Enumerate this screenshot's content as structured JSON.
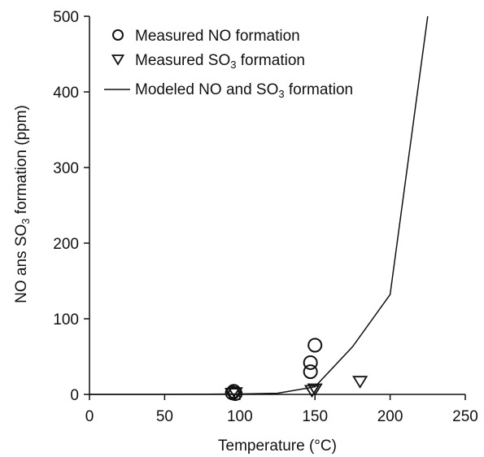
{
  "chart_data": {
    "type": "scatter",
    "xlabel": "Temperature (°C)",
    "ylabel": {
      "pre": "NO ans SO",
      "sub": "3",
      "post": " formation (ppm)"
    },
    "xlim": [
      0,
      250
    ],
    "ylim": [
      0,
      500
    ],
    "xticks": [
      0,
      50,
      100,
      150,
      200,
      250
    ],
    "yticks": [
      0,
      100,
      200,
      300,
      400,
      500
    ],
    "grid": false,
    "legend_position": "top-left",
    "series": [
      {
        "name": "Measured NO formation",
        "marker": "circle",
        "x": [
          95,
          96,
          97,
          147,
          147,
          150
        ],
        "y": [
          2,
          4,
          1,
          30,
          42,
          65
        ]
      },
      {
        "name": "Measured SO3 formation",
        "marker": "triangle-down",
        "x": [
          95,
          97,
          148,
          150,
          180
        ],
        "y": [
          1,
          2,
          5,
          7,
          17
        ]
      },
      {
        "name": "Modeled NO and SO3 formation",
        "marker": "line",
        "x": [
          0,
          50,
          100,
          125,
          150,
          175,
          200,
          225
        ],
        "y": [
          0,
          0,
          0.5,
          1.5,
          10,
          63,
          132,
          500
        ]
      }
    ],
    "legend_entries": [
      {
        "pre": "Measured NO formation",
        "sub": "",
        "post": ""
      },
      {
        "pre": "Measured SO",
        "sub": "3",
        "post": " formation"
      },
      {
        "pre": "Modeled NO and SO",
        "sub": "3",
        "post": " formation"
      }
    ]
  }
}
